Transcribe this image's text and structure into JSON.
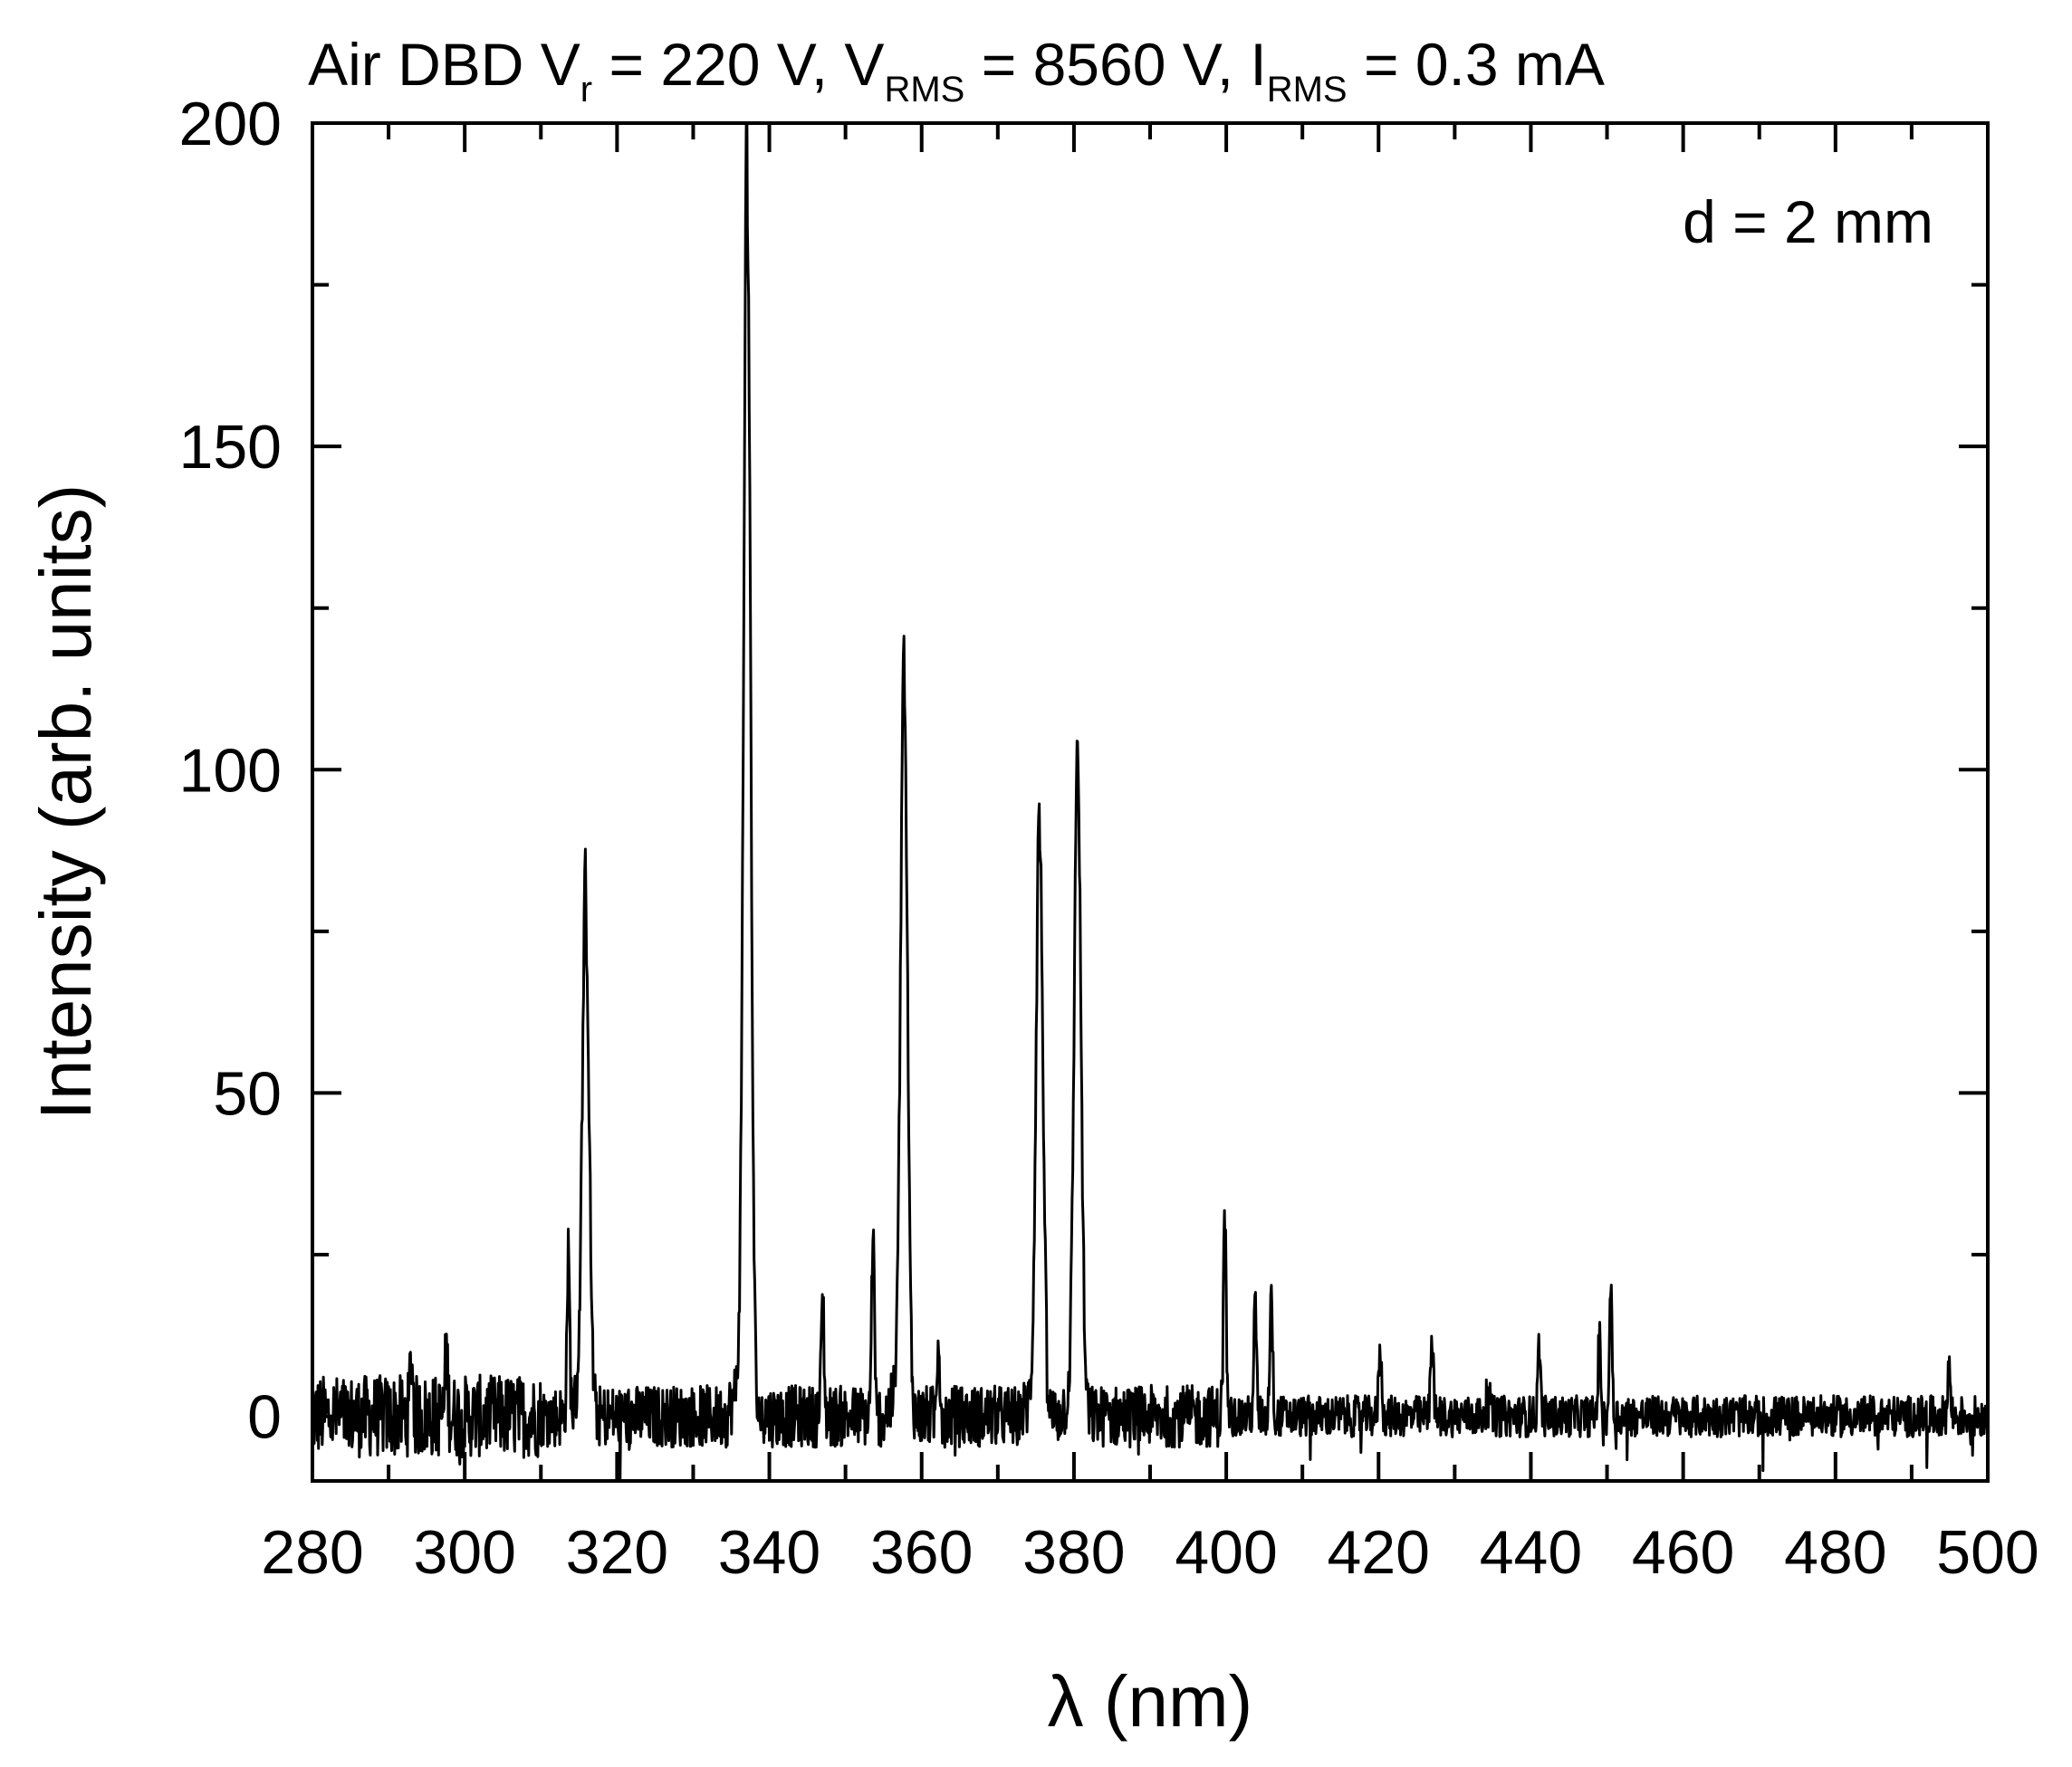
{
  "chart_data": {
    "type": "line",
    "title": {
      "prefix": "Air DBD V",
      "sub1": "r",
      "mid1": " = 220 V, V",
      "sub2": "RMS",
      "mid2": " = 8560 V, I",
      "sub3": "RMS",
      "suffix": " = 0.3 mA"
    },
    "xlabel": "λ  (nm)",
    "ylabel": "Intensity (arb. units)",
    "annotation": "d = 2 mm",
    "xlim": [
      280,
      500
    ],
    "ylim": [
      -10,
      200
    ],
    "x_ticks": [
      280,
      300,
      320,
      340,
      360,
      380,
      400,
      420,
      440,
      460,
      480,
      500
    ],
    "y_ticks": [
      0,
      50,
      100,
      150,
      200
    ],
    "grid": false,
    "line_color": "#000000",
    "series": [
      {
        "noise_baseline": 0,
        "noise_amplitude": 4,
        "peaks": [
          {
            "x": 293.0,
            "y": 10
          },
          {
            "x": 297.6,
            "y": 10
          },
          {
            "x": 313.6,
            "y": 24
          },
          {
            "x": 315.9,
            "y": 76
          },
          {
            "x": 337.1,
            "y": 186
          },
          {
            "x": 347.0,
            "y": 19
          },
          {
            "x": 353.6,
            "y": 28
          },
          {
            "x": 357.7,
            "y": 109
          },
          {
            "x": 362.2,
            "y": 13
          },
          {
            "x": 375.5,
            "y": 88
          },
          {
            "x": 380.5,
            "y": 97
          },
          {
            "x": 399.8,
            "y": 31
          },
          {
            "x": 403.8,
            "y": 17
          },
          {
            "x": 405.9,
            "y": 20
          },
          {
            "x": 420.2,
            "y": 11
          },
          {
            "x": 427.0,
            "y": 13
          },
          {
            "x": 434.4,
            "y": 6
          },
          {
            "x": 441.1,
            "y": 11
          },
          {
            "x": 449.0,
            "y": 12
          },
          {
            "x": 450.5,
            "y": 20
          },
          {
            "x": 494.9,
            "y": 8
          }
        ]
      }
    ]
  }
}
